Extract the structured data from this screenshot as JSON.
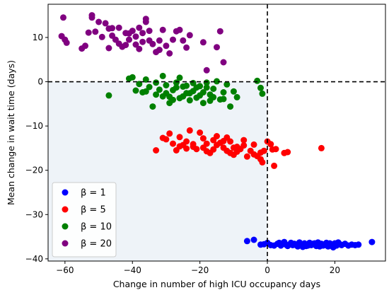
{
  "chart_data": {
    "type": "scatter",
    "title": "",
    "xlabel": "Change in number of high ICU occupancy days",
    "ylabel": "Mean change in wait time (days)",
    "xlim": [
      -65,
      35
    ],
    "ylim": [
      -40.5,
      17.5
    ],
    "xticks": [
      -60,
      -40,
      -20,
      0,
      20
    ],
    "yticks": [
      -40,
      -30,
      -20,
      -10,
      0,
      10
    ],
    "xtick_labels": [
      "−60",
      "−40",
      "−20",
      "0",
      "20"
    ],
    "ytick_labels": [
      "−40",
      "−30",
      "−20",
      "−10",
      "0",
      "10"
    ],
    "grid": false,
    "legend_position": "lower-left",
    "reference_lines": [
      {
        "orientation": "vertical",
        "value": 0,
        "style": "dashed"
      },
      {
        "orientation": "horizontal",
        "value": 0,
        "style": "dashed"
      }
    ],
    "shaded_region": {
      "x": [
        -65,
        0
      ],
      "y": [
        -40.5,
        0
      ],
      "color": "#eef3f8"
    },
    "series": [
      {
        "name": "β = 1",
        "color": "#0000ff",
        "points": [
          [
            -6,
            -36
          ],
          [
            -4,
            -35.7
          ],
          [
            -2,
            -36.8
          ],
          [
            -1,
            -36.7
          ],
          [
            0,
            -36.4
          ],
          [
            1,
            -36.9
          ],
          [
            2,
            -37
          ],
          [
            3,
            -36.6
          ],
          [
            4,
            -37
          ],
          [
            5,
            -36.2
          ],
          [
            5.5,
            -36.8
          ],
          [
            6,
            -37.1
          ],
          [
            7,
            -36.4
          ],
          [
            7.5,
            -36.9
          ],
          [
            8,
            -36.6
          ],
          [
            9,
            -37.2
          ],
          [
            9.5,
            -36.3
          ],
          [
            10,
            -36.8
          ],
          [
            11,
            -36.5
          ],
          [
            12,
            -37
          ],
          [
            12.5,
            -36.4
          ],
          [
            13,
            -36.9
          ],
          [
            14,
            -36.5
          ],
          [
            14.5,
            -37.1
          ],
          [
            15,
            -36.3
          ],
          [
            15.5,
            -37.2
          ],
          [
            16,
            -36.6
          ],
          [
            17,
            -36.9
          ],
          [
            17.5,
            -36.4
          ],
          [
            18,
            -37.2
          ],
          [
            19,
            -36.7
          ],
          [
            19.5,
            -37.4
          ],
          [
            20,
            -36.5
          ],
          [
            20.5,
            -37
          ],
          [
            21,
            -36.3
          ],
          [
            22,
            -36.9
          ],
          [
            23,
            -36.6
          ],
          [
            24,
            -37
          ],
          [
            25,
            -36.8
          ],
          [
            26,
            -36.9
          ],
          [
            27,
            -36.8
          ],
          [
            31,
            -36.2
          ],
          [
            3.5,
            -36.4
          ],
          [
            8.5,
            -36.9
          ],
          [
            11.5,
            -37.1
          ],
          [
            13.5,
            -36.6
          ],
          [
            16.5,
            -37
          ],
          [
            18.5,
            -36.5
          ],
          [
            21.5,
            -36.7
          ],
          [
            10.5,
            -37.3
          ]
        ]
      },
      {
        "name": "β = 5",
        "color": "#ff0000",
        "points": [
          [
            -33,
            -15.5
          ],
          [
            -31,
            -12.7
          ],
          [
            -30,
            -13
          ],
          [
            -29,
            -11.7
          ],
          [
            -28,
            -14
          ],
          [
            -27,
            -15.5
          ],
          [
            -26,
            -12.5
          ],
          [
            -25,
            -14.3
          ],
          [
            -24,
            -13.5
          ],
          [
            -23,
            -11
          ],
          [
            -22,
            -14.7
          ],
          [
            -21,
            -15.2
          ],
          [
            -20,
            -11.5
          ],
          [
            -19,
            -12.8
          ],
          [
            -18,
            -14
          ],
          [
            -17,
            -16.1
          ],
          [
            -16,
            -13.2
          ],
          [
            -15,
            -12.3
          ],
          [
            -14,
            -13.8
          ],
          [
            -13,
            -14.9
          ],
          [
            -12,
            -15.6
          ],
          [
            -11,
            -13.5
          ],
          [
            -10,
            -16.5
          ],
          [
            -9,
            -14.7
          ],
          [
            -8,
            -15.2
          ],
          [
            -7,
            -13.2
          ],
          [
            -6,
            -16.9
          ],
          [
            -5,
            -15.6
          ],
          [
            -4,
            -14.2
          ],
          [
            -3,
            -16.8
          ],
          [
            -2,
            -17.5
          ],
          [
            -1,
            -15.6
          ],
          [
            0,
            -13.5
          ],
          [
            1,
            -14.1
          ],
          [
            1.5,
            -15.3
          ],
          [
            2,
            -19
          ],
          [
            2.5,
            -15.2
          ],
          [
            5,
            -16.1
          ],
          [
            6,
            -15.9
          ],
          [
            16,
            -15
          ],
          [
            -22,
            -14.1
          ],
          [
            -19,
            -14.9
          ],
          [
            -16,
            -15.3
          ],
          [
            -13,
            -13.4
          ],
          [
            -11,
            -16.1
          ],
          [
            -9,
            -15.8
          ],
          [
            -7,
            -14.4
          ],
          [
            -4,
            -16.4
          ],
          [
            -2,
            -16
          ],
          [
            -26,
            -14.6
          ],
          [
            -24,
            -15.1
          ],
          [
            -18,
            -15.7
          ],
          [
            -15,
            -14.3
          ],
          [
            -12,
            -12.6
          ],
          [
            -10,
            -14.9
          ],
          [
            -1.5,
            -18.2
          ]
        ]
      },
      {
        "name": "β = 10",
        "color": "#008000",
        "points": [
          [
            -47,
            -3.1
          ],
          [
            -41,
            0.7
          ],
          [
            -40,
            1
          ],
          [
            -39,
            -2
          ],
          [
            -38,
            -0.5
          ],
          [
            -37,
            -2.4
          ],
          [
            -36,
            0.5
          ],
          [
            -35,
            -1.2
          ],
          [
            -34,
            -5.6
          ],
          [
            -33,
            -0.2
          ],
          [
            -32,
            -1.8
          ],
          [
            -31,
            -3.3
          ],
          [
            -30,
            -0.8
          ],
          [
            -29,
            -4.8
          ],
          [
            -28,
            -1.9
          ],
          [
            -27,
            -0.2
          ],
          [
            -26,
            -3.7
          ],
          [
            -25,
            -1.1
          ],
          [
            -24,
            -2.6
          ],
          [
            -23,
            -4.2
          ],
          [
            -22,
            -0.3
          ],
          [
            -21,
            -1.3
          ],
          [
            -20,
            -3.1
          ],
          [
            -19,
            -2.4
          ],
          [
            -18,
            -1.3
          ],
          [
            -17,
            -2.9
          ],
          [
            -16,
            -3.5
          ],
          [
            -15,
            0.1
          ],
          [
            -14,
            -4
          ],
          [
            -13,
            -2.4
          ],
          [
            -12,
            -0.6
          ],
          [
            -11,
            -5.6
          ],
          [
            -10,
            -2.2
          ],
          [
            -9,
            -3.5
          ],
          [
            -3,
            0.2
          ],
          [
            -2,
            -1.4
          ],
          [
            -1.5,
            -2.7
          ],
          [
            -31,
            1.3
          ],
          [
            -28,
            -4.1
          ],
          [
            -25,
            -3.3
          ],
          [
            -22,
            -2.1
          ],
          [
            -19,
            -4.8
          ],
          [
            -16,
            -1.6
          ],
          [
            -13,
            -3.9
          ],
          [
            -30,
            -2.6
          ],
          [
            -27,
            -1.3
          ],
          [
            -24,
            -0.9
          ],
          [
            -21,
            -3.6
          ],
          [
            -18,
            -0.2
          ],
          [
            -29,
            -3.4
          ],
          [
            -26,
            0.9
          ],
          [
            -23,
            -2.6
          ],
          [
            -20,
            -1
          ],
          [
            -17,
            -4.3
          ],
          [
            -33,
            -2.9
          ],
          [
            -36,
            -2.2
          ]
        ]
      },
      {
        "name": "β = 20",
        "color": "#800080",
        "points": [
          [
            -61,
            10.3
          ],
          [
            -60.5,
            14.5
          ],
          [
            -60,
            9.5
          ],
          [
            -59.5,
            8.8
          ],
          [
            -52,
            14.5
          ],
          [
            -52,
            15
          ],
          [
            -50,
            13.5
          ],
          [
            -48,
            13.2
          ],
          [
            -49,
            10.1
          ],
          [
            -47,
            12
          ],
          [
            -46,
            12.1
          ],
          [
            -45,
            9.5
          ],
          [
            -44,
            12.2
          ],
          [
            -43,
            7.9
          ],
          [
            -42,
            11
          ],
          [
            -41,
            9.5
          ],
          [
            -40,
            11.5
          ],
          [
            -39,
            10.2
          ],
          [
            -38,
            12.2
          ],
          [
            -37,
            9
          ],
          [
            -36,
            13.5
          ],
          [
            -35,
            11.5
          ],
          [
            -34,
            8.5
          ],
          [
            -33,
            6.7
          ],
          [
            -32,
            9.3
          ],
          [
            -31,
            11.7
          ],
          [
            -30,
            8.1
          ],
          [
            -29,
            6.4
          ],
          [
            -28,
            9.5
          ],
          [
            -27,
            11.4
          ],
          [
            -26,
            11.7
          ],
          [
            -25,
            9.3
          ],
          [
            -24,
            7.7
          ],
          [
            -23,
            10.5
          ],
          [
            -19,
            8.9
          ],
          [
            -18,
            2.6
          ],
          [
            -15,
            7.8
          ],
          [
            -14,
            11.4
          ],
          [
            -13,
            4.4
          ],
          [
            -55,
            7.5
          ],
          [
            -54,
            8.1
          ],
          [
            -53,
            11.1
          ],
          [
            -51,
            11.3
          ],
          [
            -36,
            14.2
          ],
          [
            -41,
            10.9
          ],
          [
            -38,
            7.4
          ],
          [
            -35,
            9.3
          ],
          [
            -44,
            8.6
          ],
          [
            -47,
            7.6
          ],
          [
            -39,
            8.4
          ],
          [
            -32,
            7.2
          ],
          [
            -37,
            11
          ],
          [
            -42,
            8.3
          ],
          [
            -46,
            10.4
          ]
        ]
      }
    ]
  }
}
